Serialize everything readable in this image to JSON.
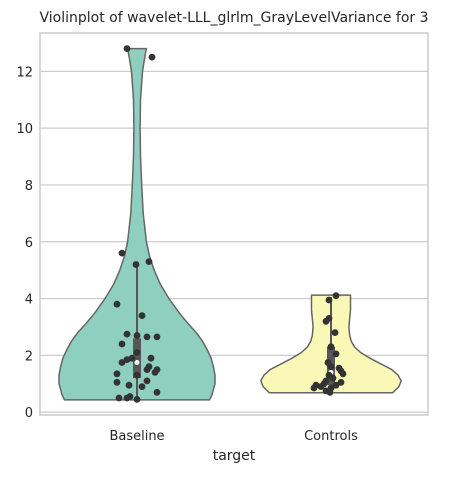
{
  "chart_data": {
    "type": "violin",
    "title": "Violinplot of wavelet-LLL_glrlm_GrayLevelVariance for 3",
    "xlabel": "target",
    "ylabel": "",
    "categories": [
      "Baseline",
      "Controls"
    ],
    "ylim": [
      -0.1,
      13.35
    ],
    "yticks": [
      0,
      2,
      4,
      6,
      8,
      10,
      12
    ],
    "ytick_labels": [
      "0",
      "2",
      "4",
      "6",
      "8",
      "10",
      "12"
    ],
    "grid": "horizontal",
    "colors": {
      "Baseline": "#8ecfc0",
      "Controls": "#f9f8b6",
      "outline": "#666666",
      "points": "#333333",
      "grid": "#cccccc",
      "frame": "#cccccc",
      "box": "#575757",
      "median": "#ffffff"
    },
    "series": [
      {
        "name": "Baseline",
        "min": 0.43,
        "q1": 1.2,
        "median": 1.75,
        "q3": 2.6,
        "whisker_low": 0.43,
        "whisker_high": 5.3,
        "max": 12.8,
        "density": [
          [
            0.43,
            0.93
          ],
          [
            0.6,
            0.96
          ],
          [
            0.8,
            0.98
          ],
          [
            1.0,
            1.0
          ],
          [
            1.3,
            1.0
          ],
          [
            1.6,
            0.98
          ],
          [
            1.9,
            0.95
          ],
          [
            2.2,
            0.9
          ],
          [
            2.5,
            0.84
          ],
          [
            2.8,
            0.76
          ],
          [
            3.1,
            0.66
          ],
          [
            3.5,
            0.54
          ],
          [
            4.0,
            0.41
          ],
          [
            4.5,
            0.3
          ],
          [
            5.0,
            0.22
          ],
          [
            5.5,
            0.16
          ],
          [
            6.0,
            0.12
          ],
          [
            7.0,
            0.08
          ],
          [
            8.0,
            0.06
          ],
          [
            9.0,
            0.045
          ],
          [
            10.0,
            0.04
          ],
          [
            11.0,
            0.045
          ],
          [
            12.0,
            0.07
          ],
          [
            12.5,
            0.1
          ],
          [
            12.8,
            0.12
          ]
        ],
        "points": [
          [
            12.8,
            -0.1
          ],
          [
            12.5,
            0.15
          ],
          [
            5.6,
            -0.15
          ],
          [
            5.3,
            0.12
          ],
          [
            5.2,
            -0.01
          ],
          [
            3.8,
            -0.2
          ],
          [
            3.4,
            0.05
          ],
          [
            2.75,
            -0.1
          ],
          [
            2.7,
            0.0
          ],
          [
            2.65,
            0.1
          ],
          [
            2.65,
            0.2
          ],
          [
            2.4,
            -0.15
          ],
          [
            2.1,
            0.0
          ],
          [
            1.9,
            -0.05
          ],
          [
            1.85,
            -0.1
          ],
          [
            1.9,
            0.14
          ],
          [
            1.75,
            -0.15
          ],
          [
            1.6,
            0.12
          ],
          [
            1.5,
            0.1
          ],
          [
            1.5,
            0.2
          ],
          [
            1.4,
            0.18
          ],
          [
            1.35,
            -0.2
          ],
          [
            1.3,
            0.0
          ],
          [
            1.1,
            0.1
          ],
          [
            1.05,
            -0.2
          ],
          [
            0.95,
            -0.08
          ],
          [
            0.9,
            0.05
          ],
          [
            0.7,
            0.2
          ],
          [
            0.5,
            -0.18
          ],
          [
            0.5,
            -0.1
          ],
          [
            0.55,
            -0.07
          ],
          [
            0.45,
            0.0
          ]
        ]
      },
      {
        "name": "Controls",
        "min": 0.68,
        "q1": 0.95,
        "median": 1.4,
        "q3": 2.3,
        "whisker_low": 0.68,
        "whisker_high": 4.05,
        "max": 4.12,
        "density": [
          [
            0.68,
            0.79
          ],
          [
            0.9,
            0.87
          ],
          [
            1.1,
            0.9
          ],
          [
            1.3,
            0.86
          ],
          [
            1.5,
            0.78
          ],
          [
            1.7,
            0.64
          ],
          [
            1.9,
            0.5
          ],
          [
            2.1,
            0.38
          ],
          [
            2.3,
            0.3
          ],
          [
            2.5,
            0.26
          ],
          [
            2.7,
            0.24
          ],
          [
            3.0,
            0.23
          ],
          [
            3.3,
            0.24
          ],
          [
            3.6,
            0.25
          ],
          [
            3.9,
            0.25
          ],
          [
            4.12,
            0.25
          ]
        ],
        "points": [
          [
            4.1,
            0.05
          ],
          [
            3.95,
            -0.02
          ],
          [
            3.3,
            -0.02
          ],
          [
            3.2,
            -0.05
          ],
          [
            2.8,
            0.04
          ],
          [
            2.3,
            0.0
          ],
          [
            2.05,
            0.05
          ],
          [
            1.75,
            -0.03
          ],
          [
            1.6,
            0.0
          ],
          [
            1.55,
            0.08
          ],
          [
            1.45,
            0.1
          ],
          [
            1.35,
            0.12
          ],
          [
            1.3,
            -0.02
          ],
          [
            1.2,
            0.02
          ],
          [
            1.1,
            -0.05
          ],
          [
            1.05,
            0.1
          ],
          [
            1.0,
            -0.07
          ],
          [
            0.95,
            0.05
          ],
          [
            0.95,
            -0.15
          ],
          [
            0.9,
            -0.1
          ],
          [
            0.85,
            -0.17
          ],
          [
            0.85,
            0.0
          ],
          [
            0.75,
            -0.05
          ],
          [
            0.7,
            -0.01
          ]
        ]
      }
    ]
  }
}
